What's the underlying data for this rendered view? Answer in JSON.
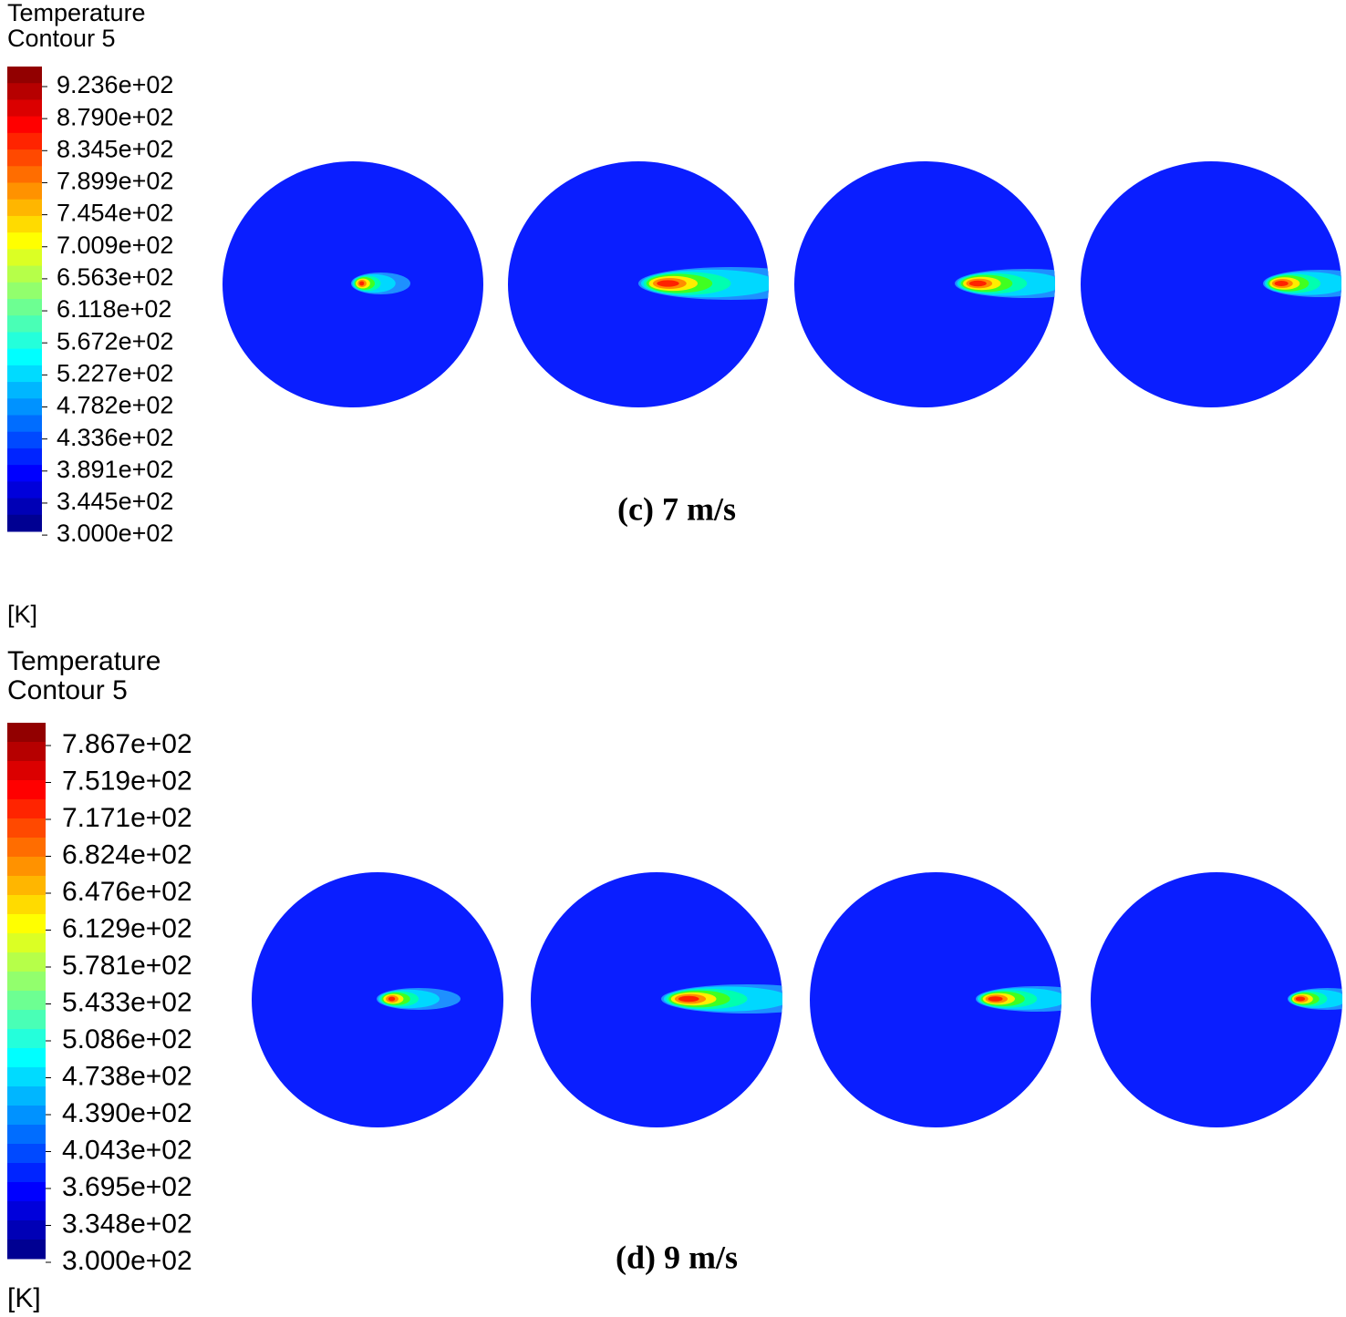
{
  "panels": [
    {
      "legend": {
        "title": "Temperature",
        "subtitle": "Contour 5",
        "labels": [
          "9.236e+02",
          "8.790e+02",
          "8.345e+02",
          "7.899e+02",
          "7.454e+02",
          "7.009e+02",
          "6.563e+02",
          "6.118e+02",
          "5.672e+02",
          "5.227e+02",
          "4.782e+02",
          "4.336e+02",
          "3.891e+02",
          "3.445e+02",
          "3.000e+02"
        ],
        "unit": "[K]"
      },
      "caption": "(c) 7 m/s"
    },
    {
      "legend": {
        "title": "Temperature",
        "subtitle": "Contour 5",
        "labels": [
          "7.867e+02",
          "7.519e+02",
          "7.171e+02",
          "6.824e+02",
          "6.476e+02",
          "6.129e+02",
          "5.781e+02",
          "5.433e+02",
          "5.086e+02",
          "4.738e+02",
          "4.390e+02",
          "4.043e+02",
          "3.695e+02",
          "3.348e+02",
          "3.000e+02"
        ],
        "unit": "[K]"
      },
      "caption": "(d) 9 m/s"
    }
  ]
}
